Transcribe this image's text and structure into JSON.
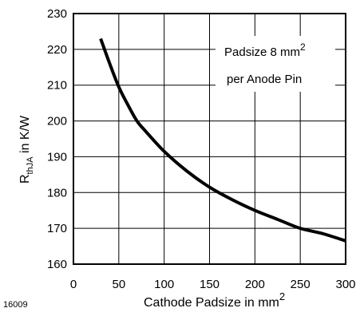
{
  "chart_data": {
    "type": "line",
    "title": "",
    "xlabel": "Cathode Padsize in mm",
    "xlabel_superscript": "2",
    "ylabel_main": "R",
    "ylabel_sub": "thJA",
    "ylabel_unit": " in K/W",
    "xlim": [
      0,
      300
    ],
    "ylim": [
      160,
      230
    ],
    "xticks": [
      0,
      50,
      100,
      150,
      200,
      250,
      300
    ],
    "yticks": [
      160,
      170,
      180,
      190,
      200,
      210,
      220,
      230
    ],
    "grid": true,
    "annotation": {
      "line1": "Padsize 8 mm",
      "line1_superscript": "2",
      "line2": "per Anode Pin"
    },
    "series": [
      {
        "x": [
          30,
          40,
          50,
          60,
          70,
          80,
          100,
          125,
          150,
          175,
          200,
          225,
          250,
          275,
          300
        ],
        "y": [
          223,
          216,
          209.5,
          204.5,
          200,
          197,
          191.5,
          186,
          181.5,
          178,
          175,
          172.5,
          170,
          168.5,
          166.5
        ]
      }
    ]
  },
  "figure_id": "16009"
}
